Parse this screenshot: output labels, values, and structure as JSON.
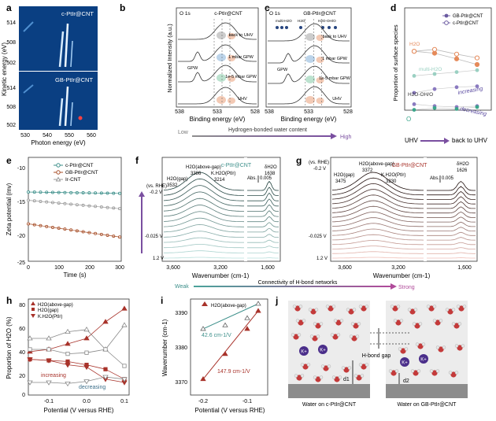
{
  "panel_letters": {
    "a": "a",
    "b": "b",
    "c": "c",
    "d": "d",
    "e": "e",
    "f": "f",
    "g": "g",
    "h": "h",
    "i": "i",
    "j": "j"
  },
  "colors": {
    "cnt": "#3c8f8a",
    "gb": "#a8322a",
    "ir": "#9a9a9a",
    "grad_low": "#8e8e8e",
    "grad_high": "#7a4fa0",
    "strong": "#b04a9a"
  },
  "a": {
    "top_label": "c-PtIr@CNT",
    "bottom_label": "GB-PtIr@CNT",
    "ylabel": "Kinetic energy (eV)",
    "xlabel": "Photon energy (eV)",
    "yticks_top": [
      "514",
      "508",
      "502"
    ],
    "yticks_bottom": [
      "514",
      "508",
      "502"
    ],
    "xticks": [
      "530",
      "540",
      "550",
      "560"
    ]
  },
  "b": {
    "corner": "O 1s",
    "title": "c-PtIr@CNT",
    "ylabel": "Normalized Intensity (a.u.)",
    "xlabel": "Binding energy (eV)",
    "xticks": [
      "538",
      "533",
      "528"
    ],
    "conditions": [
      "back to UHV",
      "1 mbar GPW",
      "1e-5 mbar GPW",
      "UHV"
    ],
    "gpw_label": "GPW"
  },
  "c": {
    "corner": "O 1s",
    "title": "GB-PtIr@CNT",
    "xlabel": "Binding energy (eV)",
    "xticks": [
      "538",
      "533",
      "528"
    ],
    "conditions": [
      "back to UHV",
      "1 mbar GPW",
      "1e-5 mbar GPW",
      "UHV"
    ],
    "gpw_label": "GPW",
    "species": [
      "multi-H2O",
      "H2O",
      "H2O-OH/O"
    ]
  },
  "d": {
    "ylabel": "Proportion of surface species",
    "legend": [
      "GB-PtIr@CNT",
      "c-PtIr@CNT"
    ],
    "labels": {
      "h2o": "H2O",
      "multi": "multi-H2O",
      "ohO": "H2O-OH/O",
      "o": "O"
    },
    "increasing": "increasing",
    "decreasing": "decreasing",
    "x_left": "UHV",
    "x_right": "back to UHV"
  },
  "gradient_bar": {
    "low": "Low",
    "title": "Hydrogen-bonded water content",
    "high": "High"
  },
  "e": {
    "ylabel": "Zeta potential (mv)",
    "xlabel": "Time (s)",
    "legend": [
      "c-PtIr@CNT",
      "GB-PtIr@CNT",
      "Ir-CNT"
    ],
    "yticks": [
      "-10",
      "-15",
      "-20",
      "-25"
    ],
    "xticks": [
      "0",
      "100",
      "200",
      "300"
    ]
  },
  "f": {
    "title": "c-PtIr@CNT",
    "vs": "(vs. RHE)",
    "top_pot": "-0.2 V",
    "mid_pot": "-0.025 V",
    "bot_pot": "1.2 V",
    "peaks": [
      "H2O(gap)",
      "H2O(above-gap)",
      "K.H2O(PtIr)",
      "δH2O"
    ],
    "peak_vals": [
      "3532",
      "3386",
      "3214",
      "1638"
    ],
    "abs": "Abs.",
    "abs_val": "0.005",
    "xlabel": "Wavenumber (cm-1)",
    "xticks": [
      "3,600",
      "3,200",
      "1,600"
    ]
  },
  "g": {
    "title": "GB-PtIr@CNT",
    "vs": "(vs. RHE)",
    "top_pot": "-0.2 V",
    "mid_pot": "-0.025 V",
    "bot_pot": "1.2 V",
    "peaks": [
      "H2O(gap)",
      "H2O(above-gap)",
      "K.H2O(PtIr)",
      "δH2O"
    ],
    "peak_vals": [
      "3475",
      "3372",
      "3230",
      "1626"
    ],
    "abs": "Abs.",
    "abs_val": "0.005",
    "xlabel": "Wavenumber (cm-1)",
    "xticks": [
      "3,600",
      "3,200",
      "1,600"
    ]
  },
  "connectivity": {
    "weak": "Weak",
    "title": "Connectivity of H-bond networks",
    "strong": "Strong"
  },
  "h": {
    "ylabel": "Proportion of H2O (%)",
    "xlabel": "Potential (V versus RHE)",
    "legend": [
      "H2O(above-gap)",
      "H2O(gap)",
      "K.H2O(PtIr)"
    ],
    "yticks": [
      "80",
      "60",
      "40",
      "20",
      "0"
    ],
    "xticks": [
      "-0.1",
      "0.0",
      "0.1"
    ],
    "increasing": "increasing",
    "decreasing": "decreasing"
  },
  "i": {
    "ylabel": "Wavenumber (cm-1)",
    "xlabel": "Potential (V versus RHE)",
    "legend": "H2O(above-gap)",
    "slope_open": "42.6 cm-1/V",
    "slope_filled": "147.9 cm-1/V",
    "yticks": [
      "3390",
      "3380",
      "3370"
    ],
    "xticks": [
      "-0.2",
      "-0.1"
    ]
  },
  "j": {
    "k_label": "K+",
    "d1": "d1",
    "d2": "d2",
    "gap_label": "H-bond gap",
    "left_caption": "Water on c-PtIr@CNT",
    "right_caption": "Water on GB-PtIr@CNT"
  },
  "chart_data": [
    {
      "type": "line",
      "panel": "d",
      "ylabel": "Proportion of surface species",
      "categories": [
        "UHV",
        "1e-5 mbar GPW",
        "1 mbar GPW",
        "back to UHV"
      ],
      "series": [
        {
          "name": "GB-PtIr@CNT",
          "values": [
            0.64,
            0.62,
            0.56,
            0.5
          ]
        },
        {
          "name": "c-PtIr@CNT",
          "values": [
            0.64,
            0.66,
            0.61,
            0.57
          ]
        }
      ]
    },
    {
      "type": "line",
      "panel": "e",
      "xlabel": "Time (s)",
      "ylabel": "Zeta potential (mv)",
      "x": [
        0,
        100,
        200,
        300
      ],
      "ylim": [
        -25,
        -10
      ],
      "series": [
        {
          "name": "c-PtIr@CNT",
          "values": [
            -15.0,
            -15.2,
            -15.1,
            -15.2
          ]
        },
        {
          "name": "GB-PtIr@CNT",
          "values": [
            -19.6,
            -20.3,
            -20.9,
            -21.5
          ]
        },
        {
          "name": "Ir-CNT",
          "values": [
            -16.2,
            -16.6,
            -17.0,
            -17.4
          ]
        }
      ]
    },
    {
      "type": "line",
      "panel": "h",
      "xlabel": "Potential (V versus RHE)",
      "ylabel": "Proportion of H2O (%)",
      "x": [
        -0.15,
        -0.1,
        -0.05,
        0.0,
        0.05,
        0.1
      ],
      "ylim": [
        0,
        80
      ],
      "series": [
        {
          "name": "H2O(above-gap) GB",
          "values": [
            38,
            40,
            45,
            50,
            65,
            77
          ]
        },
        {
          "name": "H2O(gap) GB",
          "values": [
            31,
            30,
            29,
            26,
            22,
            13
          ]
        },
        {
          "name": "K.H2O(PtIr) GB",
          "values": [
            31,
            30,
            26,
            24,
            13,
            10
          ]
        },
        {
          "name": "H2O(above-gap) c",
          "values": [
            50,
            50,
            56,
            58,
            40,
            62
          ]
        },
        {
          "name": "H2O(gap) c",
          "values": [
            40,
            40,
            36,
            37,
            40,
            25
          ]
        },
        {
          "name": "K.H2O(PtIr) c",
          "values": [
            10,
            10,
            9,
            11,
            15,
            13
          ]
        }
      ]
    },
    {
      "type": "scatter",
      "panel": "i",
      "xlabel": "Potential (V versus RHE)",
      "ylabel": "Wavenumber (cm-1)",
      "ylim": [
        3368,
        3393
      ],
      "series": [
        {
          "name": "H2O(above-gap) filled",
          "x": [
            -0.2,
            -0.15,
            -0.1,
            -0.075
          ],
          "y": [
            3372,
            3379,
            3386,
            3391
          ]
        },
        {
          "name": "H2O(above-gap) open",
          "x": [
            -0.2,
            -0.15,
            -0.1,
            -0.075
          ],
          "y": [
            3386,
            3387,
            3389,
            3393
          ]
        }
      ]
    }
  ]
}
